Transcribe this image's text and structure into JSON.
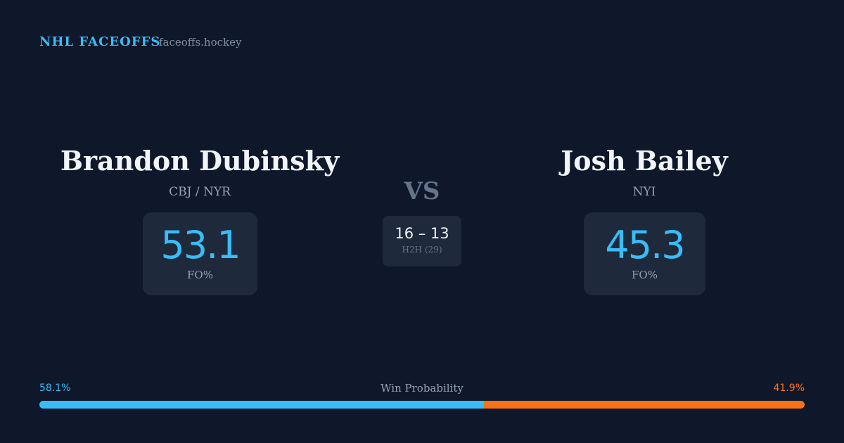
{
  "header": {
    "brand": "NHL FACEOFFS",
    "site": "faceoffs.hockey"
  },
  "players": [
    {
      "name": "Brandon Dubinsky",
      "team": "CBJ / NYR",
      "fo_pct": "53.1",
      "fo_label": "FO%"
    },
    {
      "name": "Josh Bailey",
      "team": "NYI",
      "fo_pct": "45.3",
      "fo_label": "FO%"
    }
  ],
  "vs": "VS",
  "h2h": {
    "score": "16 – 13",
    "label": "H2H (29)"
  },
  "win_probability": {
    "label": "Win Probability",
    "values": [
      58.1,
      41.9
    ],
    "value_labels": [
      "58.1%",
      "41.9%"
    ],
    "colors": [
      "#38bdf8",
      "#f97316"
    ]
  }
}
